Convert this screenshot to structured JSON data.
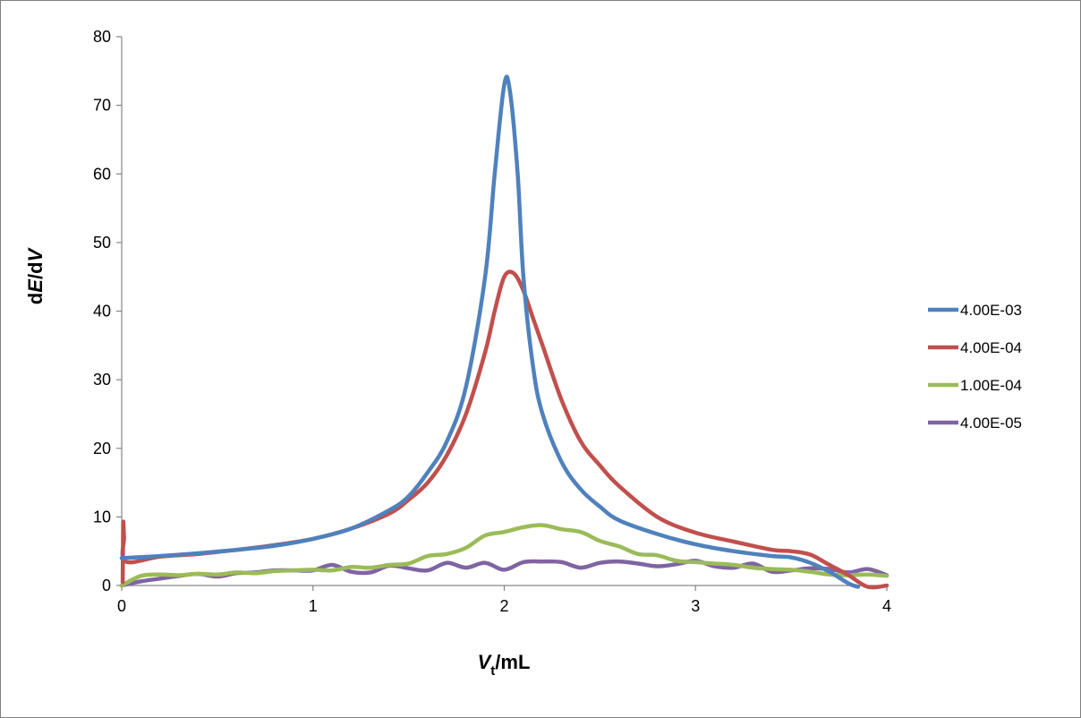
{
  "chart_data": {
    "type": "line",
    "xlabel_parts": {
      "pre": "",
      "italic": "V",
      "sub": "t",
      "post": "/mL"
    },
    "ylabel_parts": {
      "pre": "d",
      "italic1": "E",
      "mid": "/d",
      "italic2": "V"
    },
    "xlim": [
      0,
      4
    ],
    "ylim": [
      0,
      80
    ],
    "x_ticks": [
      0,
      1,
      2,
      3,
      4
    ],
    "x_tick_labels": [
      "0",
      "1",
      "2",
      "3",
      "4"
    ],
    "y_ticks": [
      0,
      10,
      20,
      30,
      40,
      50,
      60,
      70,
      80
    ],
    "y_tick_labels": [
      "0",
      "10",
      "20",
      "30",
      "40",
      "50",
      "60",
      "70",
      "80"
    ],
    "grid": false,
    "legend_position": "right",
    "series": [
      {
        "name": "4.00E-03",
        "color": "#4F81BD",
        "points": [
          [
            0.0,
            4.0
          ],
          [
            0.2,
            4.3
          ],
          [
            0.4,
            4.7
          ],
          [
            0.6,
            5.2
          ],
          [
            0.8,
            5.8
          ],
          [
            1.0,
            6.8
          ],
          [
            1.2,
            8.3
          ],
          [
            1.4,
            11.0
          ],
          [
            1.5,
            13.0
          ],
          [
            1.6,
            16.5
          ],
          [
            1.7,
            21.0
          ],
          [
            1.8,
            29.0
          ],
          [
            1.9,
            45.0
          ],
          [
            1.95,
            60.0
          ],
          [
            2.0,
            73.0
          ],
          [
            2.03,
            72.0
          ],
          [
            2.07,
            60.0
          ],
          [
            2.1,
            45.0
          ],
          [
            2.15,
            32.0
          ],
          [
            2.2,
            25.0
          ],
          [
            2.3,
            18.0
          ],
          [
            2.4,
            14.0
          ],
          [
            2.5,
            11.5
          ],
          [
            2.6,
            9.5
          ],
          [
            2.8,
            7.5
          ],
          [
            3.0,
            6.0
          ],
          [
            3.2,
            5.0
          ],
          [
            3.4,
            4.3
          ],
          [
            3.5,
            4.1
          ],
          [
            3.6,
            3.3
          ],
          [
            3.7,
            2.0
          ],
          [
            3.8,
            0.3
          ],
          [
            3.85,
            -0.2
          ]
        ]
      },
      {
        "name": "4.00E-04",
        "color": "#C0504D",
        "points": [
          [
            0.005,
            0.5
          ],
          [
            0.008,
            9.0
          ],
          [
            0.012,
            7.0
          ],
          [
            0.02,
            3.5
          ],
          [
            0.2,
            4.2
          ],
          [
            0.4,
            4.6
          ],
          [
            0.6,
            5.2
          ],
          [
            0.8,
            5.9
          ],
          [
            1.0,
            6.8
          ],
          [
            1.2,
            8.3
          ],
          [
            1.4,
            10.5
          ],
          [
            1.5,
            12.5
          ],
          [
            1.6,
            15.0
          ],
          [
            1.7,
            19.0
          ],
          [
            1.8,
            25.0
          ],
          [
            1.9,
            34.0
          ],
          [
            1.95,
            40.0
          ],
          [
            2.0,
            45.0
          ],
          [
            2.05,
            45.5
          ],
          [
            2.1,
            43.0
          ],
          [
            2.15,
            39.0
          ],
          [
            2.2,
            35.0
          ],
          [
            2.3,
            27.0
          ],
          [
            2.4,
            21.0
          ],
          [
            2.5,
            17.5
          ],
          [
            2.6,
            14.5
          ],
          [
            2.8,
            10.0
          ],
          [
            3.0,
            7.7
          ],
          [
            3.2,
            6.4
          ],
          [
            3.4,
            5.2
          ],
          [
            3.5,
            5.0
          ],
          [
            3.6,
            4.5
          ],
          [
            3.7,
            3.0
          ],
          [
            3.8,
            1.5
          ],
          [
            3.9,
            -0.2
          ],
          [
            4.0,
            0.0
          ]
        ]
      },
      {
        "name": "1.00E-04",
        "color": "#9BBB59",
        "points": [
          [
            0.0,
            0.0
          ],
          [
            0.1,
            1.4
          ],
          [
            0.2,
            1.6
          ],
          [
            0.3,
            1.5
          ],
          [
            0.4,
            1.7
          ],
          [
            0.5,
            1.6
          ],
          [
            0.6,
            1.9
          ],
          [
            0.7,
            1.8
          ],
          [
            0.8,
            2.1
          ],
          [
            0.9,
            2.2
          ],
          [
            1.0,
            2.3
          ],
          [
            1.1,
            2.2
          ],
          [
            1.2,
            2.7
          ],
          [
            1.3,
            2.6
          ],
          [
            1.4,
            3.0
          ],
          [
            1.5,
            3.2
          ],
          [
            1.6,
            4.3
          ],
          [
            1.7,
            4.6
          ],
          [
            1.8,
            5.5
          ],
          [
            1.9,
            7.3
          ],
          [
            2.0,
            7.8
          ],
          [
            2.1,
            8.5
          ],
          [
            2.2,
            8.8
          ],
          [
            2.3,
            8.2
          ],
          [
            2.4,
            7.8
          ],
          [
            2.5,
            6.5
          ],
          [
            2.6,
            5.7
          ],
          [
            2.7,
            4.6
          ],
          [
            2.8,
            4.4
          ],
          [
            2.9,
            3.6
          ],
          [
            3.0,
            3.4
          ],
          [
            3.1,
            3.2
          ],
          [
            3.2,
            3.0
          ],
          [
            3.3,
            2.6
          ],
          [
            3.4,
            2.4
          ],
          [
            3.5,
            2.3
          ],
          [
            3.6,
            2.0
          ],
          [
            3.7,
            1.6
          ],
          [
            3.8,
            1.5
          ],
          [
            3.9,
            1.6
          ],
          [
            4.0,
            1.4
          ]
        ]
      },
      {
        "name": "4.00E-05",
        "color": "#8064A2",
        "points": [
          [
            0.0,
            0.0
          ],
          [
            0.1,
            0.6
          ],
          [
            0.2,
            1.0
          ],
          [
            0.3,
            1.4
          ],
          [
            0.4,
            1.7
          ],
          [
            0.5,
            1.3
          ],
          [
            0.6,
            1.8
          ],
          [
            0.7,
            1.9
          ],
          [
            0.8,
            2.2
          ],
          [
            0.9,
            2.2
          ],
          [
            1.0,
            2.2
          ],
          [
            1.1,
            3.0
          ],
          [
            1.2,
            2.0
          ],
          [
            1.3,
            1.9
          ],
          [
            1.4,
            2.9
          ],
          [
            1.5,
            2.5
          ],
          [
            1.6,
            2.2
          ],
          [
            1.7,
            3.3
          ],
          [
            1.8,
            2.6
          ],
          [
            1.9,
            3.3
          ],
          [
            2.0,
            2.3
          ],
          [
            2.1,
            3.4
          ],
          [
            2.2,
            3.5
          ],
          [
            2.3,
            3.4
          ],
          [
            2.4,
            2.6
          ],
          [
            2.5,
            3.3
          ],
          [
            2.6,
            3.5
          ],
          [
            2.7,
            3.2
          ],
          [
            2.8,
            2.8
          ],
          [
            2.9,
            3.1
          ],
          [
            3.0,
            3.6
          ],
          [
            3.1,
            2.8
          ],
          [
            3.2,
            2.6
          ],
          [
            3.3,
            3.2
          ],
          [
            3.4,
            2.0
          ],
          [
            3.5,
            2.2
          ],
          [
            3.6,
            2.5
          ],
          [
            3.7,
            2.4
          ],
          [
            3.8,
            1.9
          ],
          [
            3.9,
            2.4
          ],
          [
            4.0,
            1.5
          ]
        ]
      }
    ]
  }
}
